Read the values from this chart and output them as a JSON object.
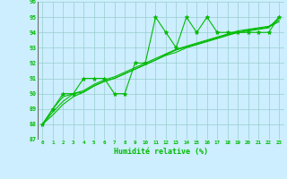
{
  "xlabel": "Humidité relative (%)",
  "bg_color": "#cceeff",
  "grid_color": "#99cccc",
  "line_color": "#00bb00",
  "ylim": [
    87,
    96
  ],
  "xlim": [
    -0.5,
    23.5
  ],
  "yticks": [
    87,
    88,
    89,
    90,
    91,
    92,
    93,
    94,
    95,
    96
  ],
  "xticks": [
    0,
    1,
    2,
    3,
    4,
    5,
    6,
    7,
    8,
    9,
    10,
    11,
    12,
    13,
    14,
    15,
    16,
    17,
    18,
    19,
    20,
    21,
    22,
    23
  ],
  "main_x": [
    0,
    1,
    2,
    3,
    4,
    5,
    6,
    7,
    8,
    9,
    10,
    11,
    12,
    13,
    14,
    15,
    16,
    17,
    18,
    19,
    20,
    21,
    22,
    23
  ],
  "main_y": [
    88.0,
    89.0,
    90.0,
    90.0,
    91.0,
    91.0,
    91.0,
    90.0,
    90.0,
    92.0,
    92.0,
    95.0,
    94.0,
    93.0,
    95.0,
    94.0,
    95.0,
    94.0,
    94.0,
    94.0,
    94.0,
    94.0,
    94.0,
    95.0
  ],
  "trend1_x": [
    0,
    1,
    2,
    3,
    4,
    5,
    6,
    7,
    8,
    9,
    10,
    11,
    12,
    13,
    14,
    15,
    16,
    17,
    18,
    19,
    20,
    21,
    22,
    23
  ],
  "trend1_y": [
    88.0,
    89.0,
    89.8,
    90.0,
    90.1,
    90.5,
    90.8,
    91.0,
    91.3,
    91.6,
    91.9,
    92.2,
    92.5,
    92.7,
    93.0,
    93.2,
    93.4,
    93.6,
    93.8,
    94.0,
    94.1,
    94.2,
    94.3,
    95.0
  ],
  "trend2_x": [
    0,
    1,
    2,
    3,
    4,
    5,
    6,
    7,
    8,
    9,
    10,
    11,
    12,
    13,
    14,
    15,
    16,
    17,
    18,
    19,
    20,
    21,
    22,
    23
  ],
  "trend2_y": [
    88.0,
    88.8,
    89.5,
    90.0,
    90.2,
    90.6,
    90.9,
    91.1,
    91.4,
    91.7,
    92.0,
    92.3,
    92.6,
    92.9,
    93.1,
    93.3,
    93.5,
    93.7,
    93.9,
    94.1,
    94.2,
    94.3,
    94.4,
    94.8
  ],
  "trend3_x": [
    0,
    1,
    2,
    3,
    4,
    5,
    6,
    7,
    8,
    9,
    10,
    11,
    12,
    13,
    14,
    15,
    16,
    17,
    18,
    19,
    20,
    21,
    22,
    23
  ],
  "trend3_y": [
    88.0,
    88.6,
    89.3,
    89.8,
    90.1,
    90.5,
    90.8,
    91.0,
    91.3,
    91.6,
    91.9,
    92.2,
    92.55,
    92.85,
    93.05,
    93.25,
    93.45,
    93.65,
    93.85,
    94.0,
    94.15,
    94.25,
    94.35,
    94.7
  ]
}
